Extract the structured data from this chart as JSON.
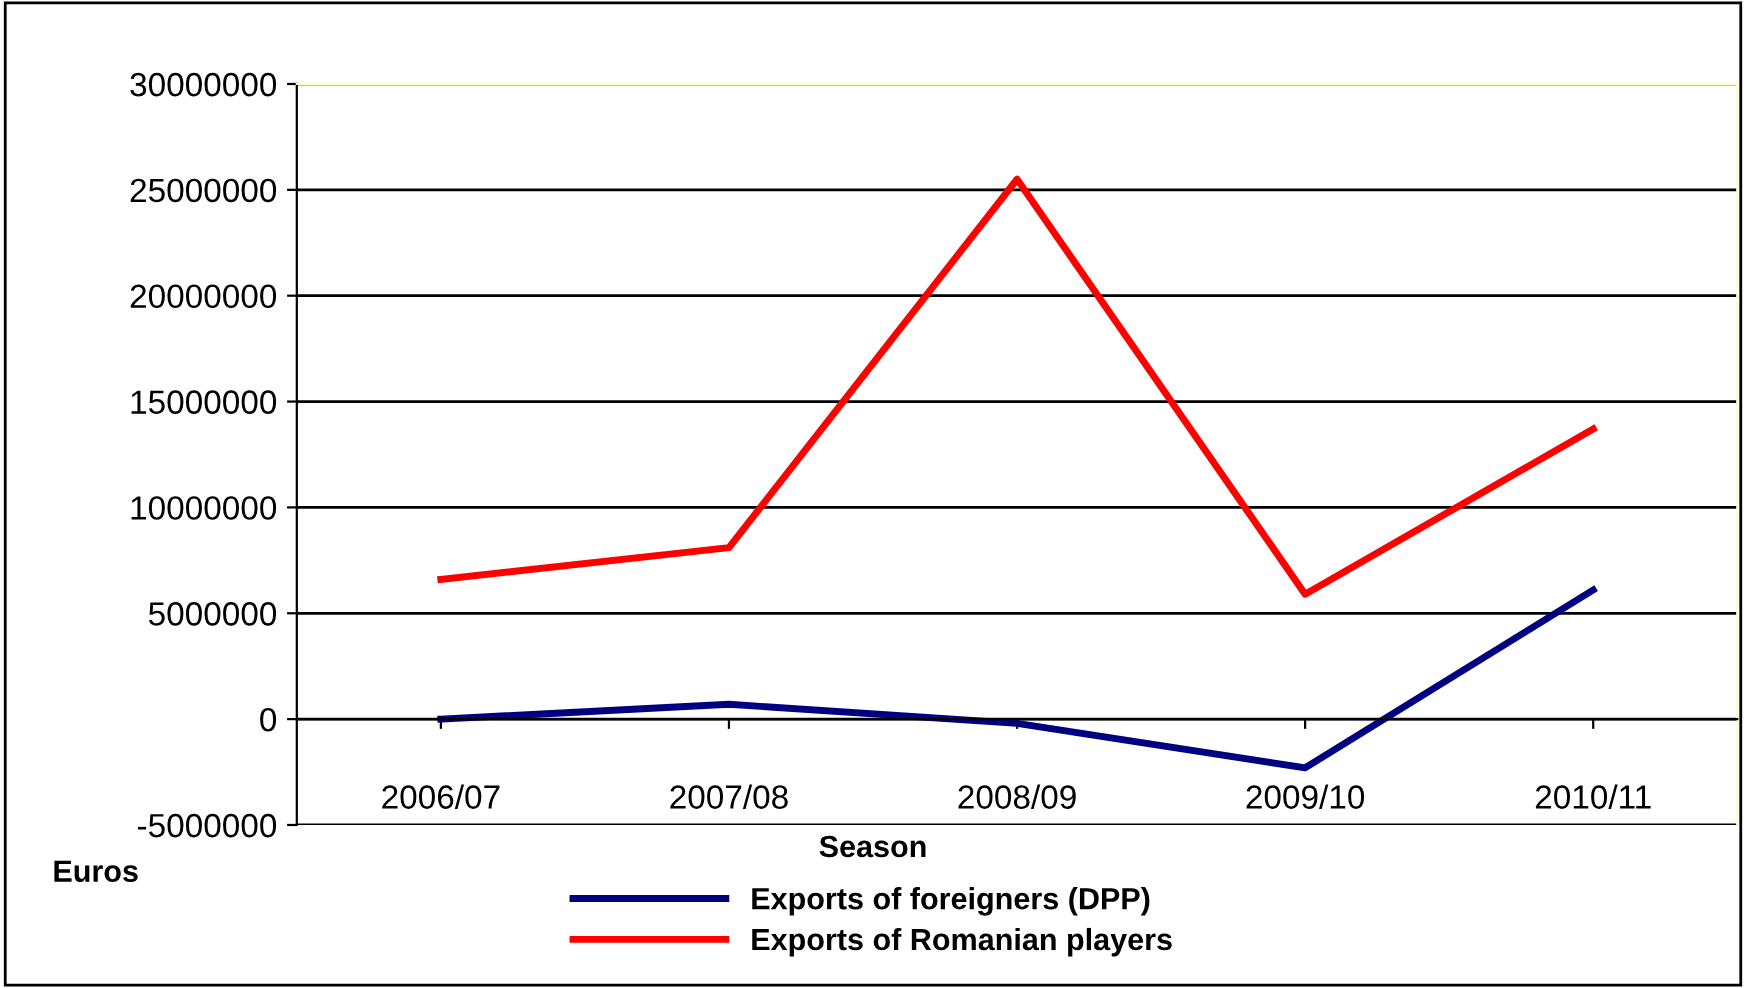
{
  "chart_data": {
    "type": "line",
    "xlabel": "Season",
    "ylabel": "Euros",
    "categories": [
      "2006/07",
      "2007/08",
      "2008/09",
      "2009/10",
      "2010/11"
    ],
    "series": [
      {
        "name": "Exports of foreigners (DPP)",
        "color": "#000080",
        "values": [
          0,
          700000,
          -200000,
          -2300000,
          6100000
        ]
      },
      {
        "name": "Exports of Romanian players",
        "color": "#ff0000",
        "values": [
          6600000,
          8100000,
          25500000,
          5900000,
          13700000
        ]
      }
    ],
    "ylim": [
      -5000000,
      30000000
    ],
    "yticks": [
      -5000000,
      0,
      5000000,
      10000000,
      15000000,
      20000000,
      25000000,
      30000000
    ],
    "grid": "y",
    "legend": "bottom",
    "marker": "none",
    "line_style": "solid"
  }
}
